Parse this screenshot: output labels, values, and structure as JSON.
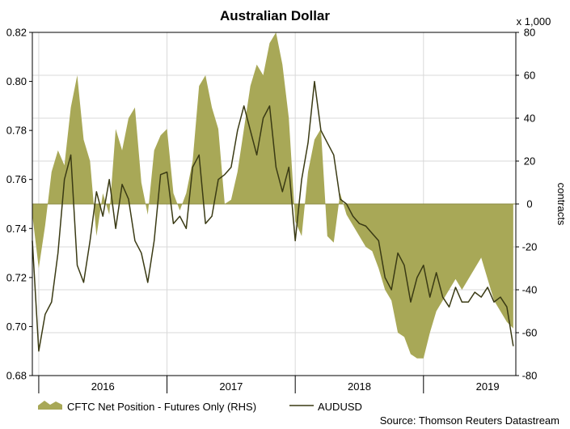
{
  "chart_data": {
    "type": "area+line",
    "title": "Australian Dollar",
    "y_left": {
      "min": 0.68,
      "max": 0.82,
      "ticks": [
        "0.68",
        "0.70",
        "0.72",
        "0.74",
        "0.76",
        "0.78",
        "0.80",
        "0.82"
      ]
    },
    "y_right": {
      "min": -80,
      "max": 80,
      "ticks": [
        "-80",
        "-60",
        "-40",
        "-20",
        "0",
        "20",
        "40",
        "60",
        "80"
      ],
      "label": "contracts",
      "unit_note": "x 1,000"
    },
    "x_axis": {
      "start": 2015.45,
      "end": 2019.22,
      "year_labels": [
        "2016",
        "2017",
        "2018",
        "2019"
      ],
      "year_label_positions": [
        2016.0,
        2017.0,
        2018.0,
        2019.0
      ],
      "dividers": [
        2015.5,
        2016.5,
        2017.5,
        2018.5
      ]
    },
    "grid": true,
    "series": [
      {
        "name": "CFTC Net Position - Futures Only (RHS)",
        "kind": "area",
        "axis": "right",
        "color": "#a8a857",
        "x": [
          2015.45,
          2015.5,
          2015.55,
          2015.6,
          2015.65,
          2015.7,
          2015.75,
          2015.8,
          2015.85,
          2015.9,
          2015.95,
          2016.0,
          2016.05,
          2016.1,
          2016.15,
          2016.2,
          2016.25,
          2016.3,
          2016.35,
          2016.4,
          2016.45,
          2016.5,
          2016.55,
          2016.6,
          2016.65,
          2016.7,
          2016.75,
          2016.8,
          2016.85,
          2016.9,
          2016.95,
          2017.0,
          2017.05,
          2017.1,
          2017.15,
          2017.2,
          2017.25,
          2017.3,
          2017.35,
          2017.4,
          2017.45,
          2017.5,
          2017.55,
          2017.6,
          2017.65,
          2017.7,
          2017.75,
          2017.8,
          2017.85,
          2017.9,
          2017.95,
          2018.0,
          2018.05,
          2018.1,
          2018.15,
          2018.2,
          2018.25,
          2018.3,
          2018.35,
          2018.4,
          2018.45,
          2018.5,
          2018.55,
          2018.6,
          2018.65,
          2018.7,
          2018.75,
          2018.8,
          2018.85,
          2018.9,
          2018.95,
          2019.0,
          2019.05,
          2019.1,
          2019.15,
          2019.2
        ],
        "values": [
          -5,
          -30,
          -10,
          15,
          25,
          18,
          45,
          60,
          30,
          20,
          -15,
          5,
          -5,
          35,
          25,
          40,
          45,
          10,
          -5,
          25,
          32,
          35,
          5,
          -3,
          5,
          20,
          55,
          60,
          45,
          35,
          0,
          2,
          15,
          35,
          55,
          65,
          60,
          75,
          80,
          65,
          40,
          -8,
          -15,
          15,
          30,
          35,
          -15,
          -18,
          5,
          -5,
          -10,
          -15,
          -20,
          -22,
          -30,
          -40,
          -45,
          -60,
          -62,
          -70,
          -72,
          -72,
          -60,
          -50,
          -45,
          -40,
          -35,
          -40,
          -35,
          -30,
          -25,
          -35,
          -45,
          -50,
          -55,
          -58
        ]
      },
      {
        "name": "AUDUSD",
        "kind": "line",
        "axis": "left",
        "color": "#3a3a14",
        "x": [
          2015.45,
          2015.5,
          2015.55,
          2015.6,
          2015.65,
          2015.7,
          2015.75,
          2015.8,
          2015.85,
          2015.9,
          2015.95,
          2016.0,
          2016.05,
          2016.1,
          2016.15,
          2016.2,
          2016.25,
          2016.3,
          2016.35,
          2016.4,
          2016.45,
          2016.5,
          2016.55,
          2016.6,
          2016.65,
          2016.7,
          2016.75,
          2016.8,
          2016.85,
          2016.9,
          2016.95,
          2017.0,
          2017.05,
          2017.1,
          2017.15,
          2017.2,
          2017.25,
          2017.3,
          2017.35,
          2017.4,
          2017.45,
          2017.5,
          2017.55,
          2017.6,
          2017.65,
          2017.7,
          2017.75,
          2017.8,
          2017.85,
          2017.9,
          2017.95,
          2018.0,
          2018.05,
          2018.1,
          2018.15,
          2018.2,
          2018.25,
          2018.3,
          2018.35,
          2018.4,
          2018.45,
          2018.5,
          2018.55,
          2018.6,
          2018.65,
          2018.7,
          2018.75,
          2018.8,
          2018.85,
          2018.9,
          2018.95,
          2019.0,
          2019.05,
          2019.1,
          2019.15,
          2019.2
        ],
        "values": [
          0.735,
          0.69,
          0.705,
          0.71,
          0.73,
          0.76,
          0.77,
          0.725,
          0.718,
          0.735,
          0.755,
          0.745,
          0.76,
          0.74,
          0.758,
          0.752,
          0.735,
          0.73,
          0.718,
          0.735,
          0.762,
          0.763,
          0.742,
          0.745,
          0.74,
          0.765,
          0.77,
          0.742,
          0.745,
          0.76,
          0.762,
          0.765,
          0.78,
          0.79,
          0.78,
          0.77,
          0.785,
          0.79,
          0.765,
          0.755,
          0.765,
          0.735,
          0.76,
          0.775,
          0.8,
          0.78,
          0.775,
          0.77,
          0.752,
          0.75,
          0.745,
          0.742,
          0.741,
          0.738,
          0.735,
          0.72,
          0.715,
          0.73,
          0.725,
          0.71,
          0.72,
          0.725,
          0.712,
          0.722,
          0.712,
          0.708,
          0.716,
          0.71,
          0.71,
          0.714,
          0.712,
          0.716,
          0.71,
          0.712,
          0.708,
          0.692
        ]
      }
    ],
    "legend": {
      "position": "bottom-left"
    },
    "source": "Source: Thomson Reuters Datastream"
  }
}
